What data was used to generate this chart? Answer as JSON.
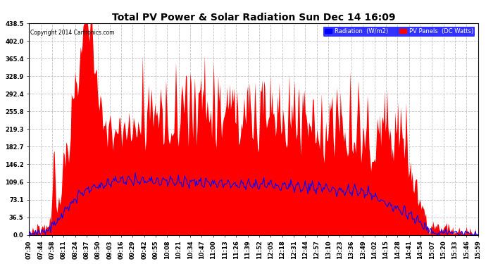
{
  "title": "Total PV Power & Solar Radiation Sun Dec 14 16:09",
  "copyright": "Copyright 2014 Cartronics.com",
  "legend_labels": [
    "Radiation  (W/m2)",
    "PV Panels  (DC Watts)"
  ],
  "legend_colors_bg": [
    "blue",
    "red"
  ],
  "y_ticks": [
    0.0,
    36.5,
    73.1,
    109.6,
    146.2,
    182.7,
    219.3,
    255.8,
    292.4,
    328.9,
    365.4,
    402.0,
    438.5
  ],
  "y_max": 438.5,
  "y_min": 0.0,
  "background_color": "#ffffff",
  "plot_bg_color": "#ffffff",
  "grid_color": "#bbbbbb",
  "pv_color": "#ff0000",
  "radiation_color": "#0000ff",
  "time_labels": [
    "07:30",
    "07:44",
    "07:58",
    "08:11",
    "08:24",
    "08:37",
    "08:50",
    "09:03",
    "09:16",
    "09:29",
    "09:42",
    "09:55",
    "10:08",
    "10:21",
    "10:34",
    "10:47",
    "11:00",
    "11:13",
    "11:26",
    "11:39",
    "11:52",
    "12:05",
    "12:18",
    "12:31",
    "12:44",
    "12:57",
    "13:10",
    "13:23",
    "13:36",
    "13:49",
    "14:02",
    "14:15",
    "14:28",
    "14:41",
    "14:54",
    "15:07",
    "15:20",
    "15:33",
    "15:46",
    "15:59"
  ]
}
